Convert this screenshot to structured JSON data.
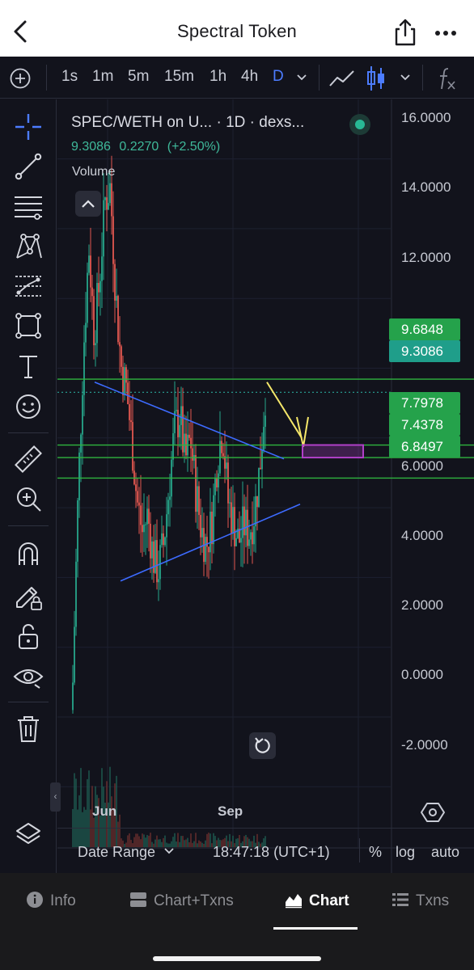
{
  "app": {
    "title": "Spectral Token",
    "back_icon": "chevron-left-icon",
    "share_icon": "share-icon",
    "more_icon": "ellipsis-icon"
  },
  "toolbar": {
    "add_icon": "plus-circle-icon",
    "intervals": [
      "1s",
      "1m",
      "5m",
      "15m",
      "1h",
      "4h",
      "D"
    ],
    "selected_interval": "D",
    "accent_color": "#4c7cff",
    "line_chart_icon": "line-chart-icon",
    "candles_icon": "candlestick-icon",
    "indicators_icon": "fx-icon"
  },
  "sidebar": {
    "tools": [
      "crosshair-icon",
      "trend-line-icon",
      "fib-icon",
      "pattern-icon",
      "prediction-icon",
      "rectangle-icon",
      "text-icon",
      "emoji-icon",
      "ruler-icon",
      "zoom-in-icon",
      "magnet-icon",
      "lock-drawing-icon",
      "unlock-icon",
      "eye-icon",
      "trash-icon",
      "layers-icon"
    ]
  },
  "legend": {
    "symbol": "SPEC/WETH on U... · 1D · dexs...",
    "price": "9.3086",
    "change": "0.2270",
    "change_pct": "(+2.50%)",
    "volume_label": "Volume"
  },
  "price_axis": {
    "ticks": [
      "16.0000",
      "14.0000",
      "12.0000",
      "6.0000",
      "4.0000",
      "2.0000",
      "0.0000",
      "-2.0000"
    ],
    "badges": [
      {
        "label": "9.6848",
        "color": "#25a24b"
      },
      {
        "label": "9.3086",
        "color": "#1f9e8a"
      },
      {
        "label": "7.7978",
        "color": "#25a24b"
      },
      {
        "label": "7.4378",
        "color": "#25a24b"
      },
      {
        "label": "6.8497",
        "color": "#25a24b"
      }
    ]
  },
  "time_axis": {
    "labels": [
      "Jun",
      "Sep"
    ]
  },
  "chart_data": {
    "type": "candlestick",
    "pair": "SPEC/WETH",
    "timeframe": "1D",
    "x_labels": [
      "Jun",
      "Sep"
    ],
    "ylim": [
      -3,
      17
    ],
    "last_price": 9.3086,
    "horizontal_levels": [
      9.6848,
      7.7978,
      7.4378,
      6.8497
    ],
    "current_price_line": 9.3086,
    "up_color": "#27a68a",
    "down_color": "#e2574f",
    "close_path": [
      1.0,
      6.5,
      10.5,
      13.5,
      11.0,
      12.5,
      14.8,
      15.2,
      12.2,
      10.1,
      9.4,
      8.0,
      6.2,
      5.3,
      5.8,
      4.6,
      4.2,
      5.0,
      6.6,
      8.2,
      8.7,
      7.3,
      8.0,
      6.5,
      5.4,
      4.9,
      5.6,
      7.4,
      8.3,
      6.2,
      5.6,
      5.0,
      5.5,
      5.3,
      5.9,
      7.2,
      9.3
    ],
    "annotations": [
      {
        "type": "trendline",
        "color": "#3d6bff",
        "from": [
          0.0,
          9.6
        ],
        "to": [
          1.0,
          7.4
        ]
      },
      {
        "type": "trendline",
        "color": "#3d6bff",
        "from": [
          0.0,
          3.9
        ],
        "to": [
          1.0,
          6.1
        ]
      },
      {
        "type": "arrow",
        "color": "#f5e76a"
      },
      {
        "type": "rectangle",
        "color": "#b040c8",
        "low": 7.4378,
        "high": 7.7978
      }
    ]
  },
  "controls": {
    "reset_icon": "reset-icon",
    "settings_icon": "gear-hex-icon",
    "scroll_icon": "chevron-left-small-icon"
  },
  "footer": {
    "date_range": "Date Range",
    "timestamp": "18:47:18 (UTC+1)",
    "percent": "%",
    "log": "log",
    "auto": "auto"
  },
  "bottom_nav": {
    "tabs": [
      {
        "label": "Info",
        "icon": "info-icon"
      },
      {
        "label": "Chart+Txns",
        "icon": "chart-txns-icon"
      },
      {
        "label": "Chart",
        "icon": "chart-area-icon"
      },
      {
        "label": "Txns",
        "icon": "list-icon"
      }
    ],
    "active": "Chart"
  }
}
